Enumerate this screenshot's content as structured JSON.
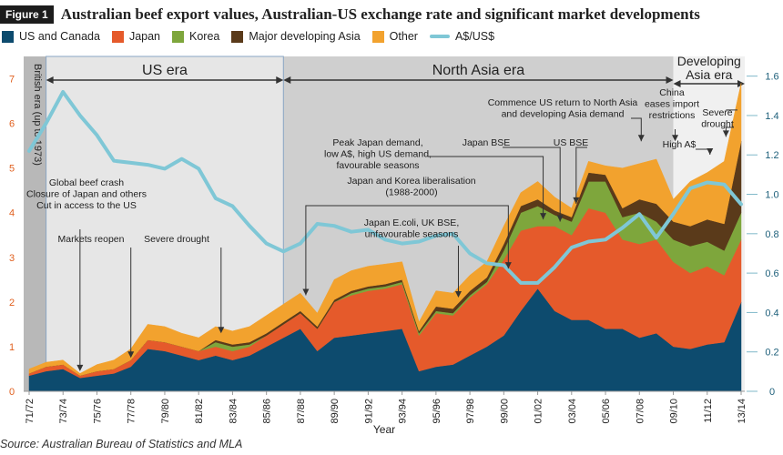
{
  "figure": {
    "label": "Figure 1",
    "title": "Australian beef export values, Australian-US exchange rate and significant market developments",
    "source": "Source: Australian Bureau of Statistics and MLA"
  },
  "legend": [
    {
      "name": "US and Canada",
      "color": "#0d4b6e",
      "kind": "area"
    },
    {
      "name": "Japan",
      "color": "#e55a2b",
      "kind": "area"
    },
    {
      "name": "Korea",
      "color": "#7ea63c",
      "kind": "area"
    },
    {
      "name": "Major developing Asia",
      "color": "#5a3a1a",
      "kind": "area"
    },
    {
      "name": "Other",
      "color": "#f2a22e",
      "kind": "area"
    },
    {
      "name": "A$/US$",
      "color": "#7fc7d6",
      "kind": "line"
    }
  ],
  "chart_data": {
    "type": "area",
    "stacked": true,
    "xlabel": "Year",
    "x": [
      "71/72",
      "72/73",
      "73/74",
      "74/75",
      "75/76",
      "76/77",
      "77/78",
      "78/79",
      "79/80",
      "80/81",
      "81/82",
      "82/83",
      "83/84",
      "84/85",
      "85/86",
      "86/87",
      "87/88",
      "88/89",
      "89/90",
      "90/91",
      "91/92",
      "92/93",
      "93/94",
      "94/95",
      "95/96",
      "96/97",
      "97/98",
      "98/99",
      "99/00",
      "00/01",
      "01/02",
      "02/03",
      "03/04",
      "04/05",
      "05/06",
      "06/07",
      "07/08",
      "08/09",
      "09/10",
      "10/11",
      "11/12",
      "12/13",
      "13/14"
    ],
    "x_tick_labels": [
      "71/72",
      "73/74",
      "75/76",
      "77/78",
      "79/80",
      "81/82",
      "83/84",
      "85/86",
      "87/88",
      "89/90",
      "91/92",
      "93/94",
      "95/96",
      "97/98",
      "99/00",
      "01/02",
      "03/04",
      "05/06",
      "07/08",
      "09/10",
      "11/12",
      "13/14"
    ],
    "y_left": {
      "ticks": [
        "0",
        "1",
        "2",
        "3",
        "4",
        "5",
        "6",
        "7"
      ],
      "lim": [
        0,
        7.5
      ]
    },
    "y_right": {
      "ticks": [
        "0",
        "0.2",
        "0.4",
        "0.6",
        "0.8",
        "1.0",
        "1.2",
        "1.4",
        "1.6"
      ],
      "lim": [
        0,
        1.7
      ]
    },
    "series": [
      {
        "name": "US and Canada",
        "color": "#0d4b6e",
        "values": [
          0.35,
          0.45,
          0.5,
          0.3,
          0.35,
          0.4,
          0.55,
          0.95,
          0.9,
          0.8,
          0.7,
          0.8,
          0.7,
          0.8,
          1.0,
          1.2,
          1.4,
          0.9,
          1.2,
          1.25,
          1.3,
          1.35,
          1.4,
          0.45,
          0.55,
          0.6,
          0.8,
          1.0,
          1.25,
          1.8,
          2.3,
          1.8,
          1.6,
          1.6,
          1.4,
          1.4,
          1.2,
          1.3,
          1.0,
          0.95,
          1.05,
          1.1,
          2.0
        ]
      },
      {
        "name": "Japan",
        "color": "#e55a2b",
        "values": [
          0.05,
          0.1,
          0.1,
          0.05,
          0.1,
          0.1,
          0.15,
          0.2,
          0.2,
          0.2,
          0.2,
          0.2,
          0.2,
          0.2,
          0.25,
          0.3,
          0.35,
          0.5,
          0.8,
          0.9,
          0.95,
          0.95,
          1.0,
          0.8,
          1.2,
          1.1,
          1.3,
          1.4,
          1.7,
          1.8,
          1.4,
          1.9,
          1.9,
          2.5,
          2.6,
          2.0,
          2.1,
          2.1,
          1.9,
          1.7,
          1.75,
          1.5,
          1.4
        ]
      },
      {
        "name": "Korea",
        "color": "#7ea63c",
        "values": [
          0,
          0,
          0,
          0,
          0,
          0,
          0,
          0,
          0,
          0,
          0,
          0.1,
          0.1,
          0.05,
          0,
          0,
          0,
          0,
          0,
          0.05,
          0.05,
          0.05,
          0.05,
          0.05,
          0.05,
          0.05,
          0.05,
          0.05,
          0.2,
          0.4,
          0.45,
          0.25,
          0.3,
          0.6,
          0.7,
          0.5,
          0.7,
          0.4,
          0.5,
          0.6,
          0.55,
          0.55,
          0.6
        ]
      },
      {
        "name": "Major developing Asia",
        "color": "#5a3a1a",
        "values": [
          0,
          0,
          0,
          0,
          0,
          0,
          0,
          0,
          0,
          0,
          0,
          0.05,
          0.05,
          0.05,
          0.05,
          0.05,
          0.05,
          0.05,
          0.05,
          0.05,
          0.05,
          0.05,
          0.05,
          0.05,
          0.1,
          0.1,
          0.1,
          0.1,
          0.15,
          0.15,
          0.15,
          0.1,
          0.1,
          0.2,
          0.15,
          0.2,
          0.3,
          0.4,
          0.4,
          0.45,
          0.5,
          0.6,
          1.6
        ]
      },
      {
        "name": "Other",
        "color": "#f2a22e",
        "values": [
          0.1,
          0.1,
          0.1,
          0.05,
          0.15,
          0.2,
          0.25,
          0.35,
          0.35,
          0.3,
          0.3,
          0.3,
          0.3,
          0.35,
          0.4,
          0.4,
          0.4,
          0.3,
          0.45,
          0.45,
          0.45,
          0.45,
          0.4,
          0.2,
          0.35,
          0.35,
          0.35,
          0.35,
          0.4,
          0.3,
          0.4,
          0.3,
          0.2,
          0.25,
          0.2,
          0.9,
          0.8,
          1.0,
          0.5,
          1.0,
          1.05,
          1.4,
          1.3
        ]
      }
    ],
    "line_series": {
      "name": "A$/US$",
      "color": "#7fc7d6",
      "axis": "right",
      "values": [
        1.22,
        1.36,
        1.52,
        1.4,
        1.3,
        1.17,
        1.16,
        1.15,
        1.13,
        1.18,
        1.13,
        0.98,
        0.94,
        0.84,
        0.75,
        0.71,
        0.75,
        0.85,
        0.84,
        0.81,
        0.82,
        0.77,
        0.75,
        0.76,
        0.79,
        0.8,
        0.7,
        0.65,
        0.64,
        0.55,
        0.55,
        0.63,
        0.73,
        0.76,
        0.77,
        0.83,
        0.9,
        0.78,
        0.9,
        1.03,
        1.06,
        1.05,
        0.95
      ]
    },
    "eras": [
      {
        "label": "British era (up to 1973)",
        "from": 0,
        "to": 1
      },
      {
        "label": "US era",
        "from": 1,
        "to": 15
      },
      {
        "label": "North Asia era",
        "from": 15,
        "to": 38
      },
      {
        "label": "Developing Asia era",
        "from": 38,
        "to": 42
      }
    ],
    "annotations": [
      {
        "lines": [
          "Global beef crash",
          "Closure of Japan and others",
          "Cut in access to the US"
        ],
        "x": 3
      },
      {
        "lines": [
          "Markets reopen"
        ],
        "x": 6
      },
      {
        "lines": [
          "Severe drought"
        ],
        "x": 11
      },
      {
        "lines": [
          "Japan and Korea liberalisation",
          "(1988-2000)"
        ],
        "x_from": 16,
        "x_to": 28
      },
      {
        "lines": [
          "Peak Japan demand,",
          "low A$, high US demand,",
          "favourable seasons"
        ],
        "x": 30
      },
      {
        "lines": [
          "Japan BSE"
        ],
        "x": 31
      },
      {
        "lines": [
          "Japan E.coli, UK BSE,",
          "unfavourable seasons"
        ],
        "x": 25
      },
      {
        "lines": [
          "US BSE"
        ],
        "x": 32
      },
      {
        "lines": [
          "Commence US return to North Asia",
          "and developing Asia demand"
        ],
        "x": 36
      },
      {
        "lines": [
          "China",
          "eases import",
          "restrictions"
        ],
        "x": 38
      },
      {
        "lines": [
          "High A$"
        ],
        "x": 40
      },
      {
        "lines": [
          "Severe",
          "drought"
        ],
        "x": 41
      }
    ]
  }
}
